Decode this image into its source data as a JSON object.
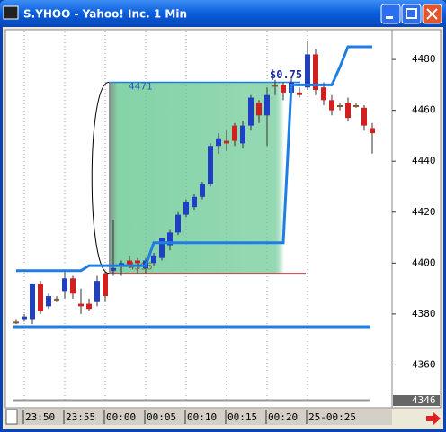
{
  "window": {
    "title": "S.YHOO - Yahoo! Inc. 1 Min"
  },
  "chart_data": {
    "type": "candlestick",
    "categories": [
      null,
      "23:50",
      null,
      null,
      null,
      null,
      "23:55",
      null,
      null,
      null,
      null,
      "00:00",
      null,
      null,
      null,
      null,
      "00:05",
      null,
      null,
      null,
      null,
      "00:10",
      null,
      null,
      null,
      null,
      "00:15",
      null,
      null,
      null,
      null,
      "00:20",
      null,
      null,
      null,
      null,
      "25-00:25",
      null,
      null,
      null,
      null,
      null,
      null,
      null,
      null
    ],
    "open": [
      4377,
      4378,
      4378,
      4392,
      4383,
      4386,
      4389,
      4394,
      4384,
      4384,
      4385,
      4396,
      4397,
      4399,
      4401,
      4401,
      4398,
      4400,
      4402,
      4407,
      4412,
      4419,
      4422,
      4426,
      4431,
      4446,
      4448,
      4454,
      4447,
      4454,
      4463,
      4458,
      4470,
      4470,
      4467,
      4467,
      4469,
      4482,
      4469,
      4464,
      4462,
      4463,
      4462,
      4461,
      4453
    ],
    "high": [
      4378,
      4380,
      4392,
      4393,
      4388,
      4387,
      4397,
      4395,
      4390,
      4386,
      4395,
      4397,
      4417,
      4401,
      4403,
      4402,
      4402,
      4404,
      4410,
      4413,
      4420,
      4425,
      4427,
      4432,
      4447,
      4451,
      4452,
      4455,
      4456,
      4466,
      4464,
      4469,
      4472,
      4471,
      4473,
      4469,
      4487,
      4484,
      4471,
      4466,
      4463,
      4465,
      4463,
      4462,
      4455
    ],
    "low": [
      4376,
      4377,
      4376,
      4380,
      4382,
      4385,
      4386,
      4386,
      4380,
      4381,
      4383,
      4385,
      4395,
      4395,
      4398,
      4396,
      4396,
      4399,
      4401,
      4405,
      4411,
      4418,
      4421,
      4425,
      4430,
      4443,
      4444,
      4446,
      4445,
      4452,
      4455,
      4446,
      4466,
      4464,
      4466,
      4465,
      4468,
      4466,
      4462,
      4458,
      4460,
      4456,
      4461,
      4452,
      4443
    ],
    "close": [
      4377,
      4379,
      4392,
      4381,
      4387,
      4386,
      4394,
      4388,
      4383,
      4382,
      4393,
      4387,
      4398,
      4400,
      4399,
      4400,
      4401,
      4403,
      4410,
      4412,
      4419,
      4424,
      4426,
      4431,
      4446,
      4449,
      4447,
      4448,
      4454,
      4465,
      4458,
      4466,
      4470,
      4467,
      4471,
      4466,
      4482,
      4468,
      4464,
      4460,
      4462,
      4457,
      4462,
      4454,
      4451
    ],
    "up_color": "#1f3fc4",
    "down_color": "#d02020",
    "flat_color": "#8b5a2b",
    "trail": {
      "color": "#1e7ee6",
      "values": [
        4397,
        4397,
        4397,
        4397,
        4397,
        4397,
        4397,
        4397,
        4397,
        4399,
        4399,
        4399,
        4399,
        4399,
        4399,
        4399,
        4399,
        4408,
        4408,
        4408,
        4408,
        4408,
        4408,
        4408,
        4408,
        4408,
        4408,
        4408,
        4408,
        4408,
        4408,
        4408,
        4408,
        4408,
        4470,
        4470,
        4470,
        4470,
        4470,
        4470,
        4477,
        4485,
        4485,
        4485,
        4485
      ]
    },
    "level_line": {
      "value": 4375,
      "color": "#1e7ee6"
    },
    "box": {
      "top": 4471,
      "bottom": 4396,
      "start": 11,
      "end": 33,
      "color": "#5cc48a",
      "line_color": "#d04040"
    },
    "annotation": "$0.75",
    "cursor_value": 4346,
    "ylim": [
      4346,
      4491
    ],
    "yticks": [
      4360,
      4380,
      4400,
      4420,
      4440,
      4460,
      4480
    ],
    "grid": true
  }
}
